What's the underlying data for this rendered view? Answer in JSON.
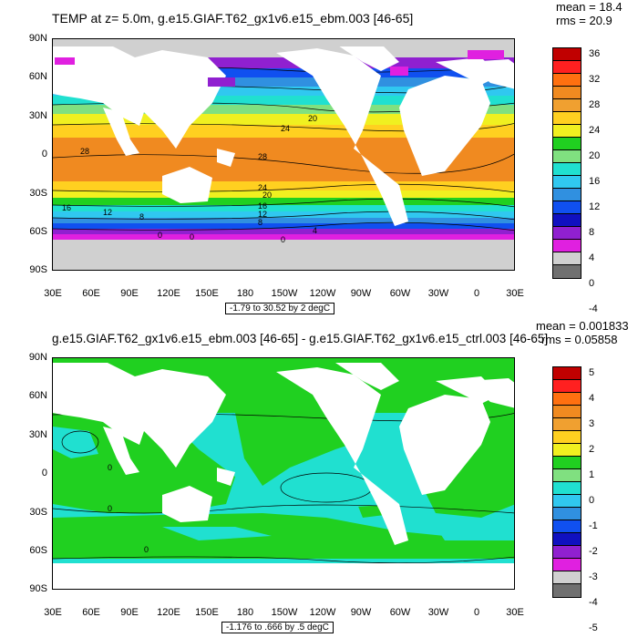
{
  "top": {
    "title": "TEMP at z=   5.0m, g.e15.GIAF.T62_gx1v6.e15_ebm.003 [46-65]",
    "mean": "mean = 18.4",
    "rms": "rms = 20.9",
    "range": "-1.79 to 30.52 by 2 degC",
    "colorbar_labels": [
      "36",
      "32",
      "28",
      "24",
      "20",
      "16",
      "12",
      "8",
      "4",
      "0",
      "-4"
    ],
    "colorbar_colors": [
      "#c00000",
      "#ff2020",
      "#ff7010",
      "#f08a20",
      "#f0a030",
      "#ffd020",
      "#f0f020",
      "#20d020",
      "#80e080",
      "#20e0d0",
      "#30c8f0",
      "#3090e0",
      "#1050f0",
      "#1010c0",
      "#9020d0",
      "#e020e0",
      "#d0d0d0",
      "#707070"
    ],
    "contour_labels": [
      "24",
      "20",
      "28",
      "28",
      "24",
      "20",
      "16",
      "12",
      "8",
      "4",
      "0",
      "16",
      "12",
      "8",
      "0",
      "0"
    ]
  },
  "bottom": {
    "title": "g.e15.GIAF.T62_gx1v6.e15_ebm.003 [46-65] - g.e15.GIAF.T62_gx1v6.e15_ctrl.003 [46-65]",
    "mean": "mean = 0.001833",
    "rms": "rms = 0.05858",
    "range": "-1.176 to .666 by .5 degC",
    "colorbar_labels": [
      "5",
      "4",
      "3",
      "2",
      "1",
      "0",
      "-1",
      "-2",
      "-3",
      "-4",
      "-5"
    ],
    "colorbar_colors": [
      "#c00000",
      "#ff2020",
      "#ff7010",
      "#f08a20",
      "#f0a030",
      "#ffd020",
      "#f0f020",
      "#20d020",
      "#80e080",
      "#20e0d0",
      "#30c8f0",
      "#3090e0",
      "#1050f0",
      "#1010c0",
      "#9020d0",
      "#e020e0",
      "#d0d0d0",
      "#707070"
    ],
    "contour_labels": [
      "0",
      "0",
      "0"
    ]
  },
  "axes": {
    "lat_labels": [
      "90N",
      "60N",
      "30N",
      "0",
      "30S",
      "60S",
      "90S"
    ],
    "lon_labels": [
      "30E",
      "60E",
      "90E",
      "120E",
      "150E",
      "180",
      "150W",
      "120W",
      "90W",
      "60W",
      "30W",
      "0",
      "30E"
    ]
  },
  "colors": {
    "land": "#ffffff",
    "ice": "#d3d3d3",
    "frame": "#000000"
  }
}
